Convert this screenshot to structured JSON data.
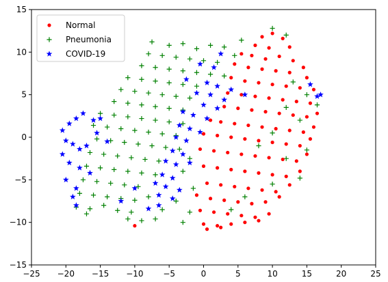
{
  "chart_data": {
    "type": "scatter",
    "title": "",
    "xlabel": "",
    "ylabel": "",
    "xlim": [
      -25,
      25
    ],
    "ylim": [
      -15,
      15
    ],
    "x_ticks": [
      -25,
      -20,
      -15,
      -10,
      -5,
      0,
      5,
      10,
      15,
      20,
      25
    ],
    "y_ticks": [
      -15,
      -10,
      -5,
      0,
      5,
      10,
      15
    ],
    "grid": false,
    "legend_position": "top-left",
    "series": [
      {
        "name": "Normal",
        "color": "#ff0000",
        "marker": "circle",
        "points": [
          [
            8.5,
            11.8
          ],
          [
            10.0,
            12.2
          ],
          [
            11.5,
            11.6
          ],
          [
            7.5,
            10.8
          ],
          [
            9.5,
            10.5
          ],
          [
            12.5,
            10.6
          ],
          [
            5.5,
            9.8
          ],
          [
            7.0,
            9.6
          ],
          [
            9.0,
            9.2
          ],
          [
            11.0,
            9.5
          ],
          [
            13.0,
            9.0
          ],
          [
            14.5,
            8.2
          ],
          [
            4.5,
            8.6
          ],
          [
            6.5,
            8.2
          ],
          [
            8.5,
            8.0
          ],
          [
            10.5,
            7.8
          ],
          [
            12.5,
            7.6
          ],
          [
            15.0,
            7.0
          ],
          [
            4.0,
            7.0
          ],
          [
            6.0,
            6.6
          ],
          [
            8.0,
            6.4
          ],
          [
            10.0,
            6.2
          ],
          [
            12.0,
            6.0
          ],
          [
            14.0,
            5.8
          ],
          [
            16.0,
            5.6
          ],
          [
            3.5,
            5.2
          ],
          [
            5.5,
            5.0
          ],
          [
            7.5,
            4.8
          ],
          [
            9.5,
            4.6
          ],
          [
            11.5,
            4.4
          ],
          [
            13.5,
            4.2
          ],
          [
            15.5,
            4.0
          ],
          [
            3.0,
            3.6
          ],
          [
            5.0,
            3.4
          ],
          [
            7.0,
            3.2
          ],
          [
            9.0,
            3.0
          ],
          [
            11.0,
            2.8
          ],
          [
            13.0,
            2.6
          ],
          [
            15.0,
            2.4
          ],
          [
            16.5,
            2.8
          ],
          [
            1.0,
            2.0
          ],
          [
            2.5,
            1.8
          ],
          [
            4.5,
            1.6
          ],
          [
            6.5,
            1.4
          ],
          [
            8.5,
            1.2
          ],
          [
            10.5,
            1.0
          ],
          [
            12.5,
            0.8
          ],
          [
            14.5,
            0.6
          ],
          [
            16.0,
            1.2
          ],
          [
            0.0,
            0.4
          ],
          [
            2.0,
            0.2
          ],
          [
            4.0,
            0.0
          ],
          [
            6.0,
            -0.2
          ],
          [
            8.0,
            -0.4
          ],
          [
            10.0,
            -0.6
          ],
          [
            12.0,
            -0.8
          ],
          [
            14.0,
            -1.0
          ],
          [
            15.5,
            -0.2
          ],
          [
            -0.5,
            -1.4
          ],
          [
            1.5,
            -1.6
          ],
          [
            3.5,
            -1.8
          ],
          [
            5.5,
            -2.0
          ],
          [
            7.5,
            -2.2
          ],
          [
            9.5,
            -2.4
          ],
          [
            11.5,
            -2.6
          ],
          [
            13.5,
            -2.8
          ],
          [
            15.0,
            -2.0
          ],
          [
            0.0,
            -3.4
          ],
          [
            2.0,
            -3.6
          ],
          [
            4.0,
            -3.8
          ],
          [
            6.0,
            -4.0
          ],
          [
            8.0,
            -4.2
          ],
          [
            10.0,
            -4.4
          ],
          [
            12.0,
            -4.6
          ],
          [
            14.0,
            -4.0
          ],
          [
            0.5,
            -5.4
          ],
          [
            2.5,
            -5.6
          ],
          [
            4.5,
            -5.8
          ],
          [
            6.5,
            -6.0
          ],
          [
            8.5,
            -6.2
          ],
          [
            10.5,
            -6.4
          ],
          [
            12.5,
            -5.6
          ],
          [
            -1.0,
            -6.8
          ],
          [
            1.0,
            -7.2
          ],
          [
            3.0,
            -7.4
          ],
          [
            5.0,
            -7.6
          ],
          [
            7.0,
            -7.8
          ],
          [
            9.0,
            -7.6
          ],
          [
            11.0,
            -7.0
          ],
          [
            -0.5,
            -8.6
          ],
          [
            1.5,
            -8.8
          ],
          [
            3.5,
            -9.0
          ],
          [
            5.5,
            -9.2
          ],
          [
            7.5,
            -9.4
          ],
          [
            9.5,
            -9.0
          ],
          [
            0.0,
            -10.2
          ],
          [
            2.0,
            -10.4
          ],
          [
            4.0,
            -10.2
          ],
          [
            6.0,
            -10.0
          ],
          [
            8.0,
            -9.8
          ],
          [
            0.5,
            -10.8
          ],
          [
            2.5,
            -10.6
          ],
          [
            -10.0,
            -10.4
          ]
        ]
      },
      {
        "name": "Pneumonia",
        "color": "#008000",
        "marker": "plus",
        "points": [
          [
            -7.5,
            11.2
          ],
          [
            -5.0,
            10.8
          ],
          [
            -3.0,
            11.0
          ],
          [
            -1.0,
            10.4
          ],
          [
            1.0,
            10.8
          ],
          [
            3.0,
            10.6
          ],
          [
            5.5,
            11.4
          ],
          [
            10.0,
            12.8
          ],
          [
            12.0,
            12.0
          ],
          [
            -8.0,
            9.8
          ],
          [
            -6.0,
            9.6
          ],
          [
            -4.0,
            9.4
          ],
          [
            -2.0,
            9.2
          ],
          [
            0.0,
            9.0
          ],
          [
            2.0,
            8.8
          ],
          [
            4.5,
            9.6
          ],
          [
            -9.0,
            8.4
          ],
          [
            -7.0,
            8.2
          ],
          [
            -5.0,
            8.0
          ],
          [
            -3.0,
            7.8
          ],
          [
            -1.0,
            7.6
          ],
          [
            1.0,
            7.4
          ],
          [
            3.0,
            7.2
          ],
          [
            -11.0,
            7.0
          ],
          [
            -9.0,
            6.8
          ],
          [
            -7.0,
            6.6
          ],
          [
            -5.0,
            6.4
          ],
          [
            -3.0,
            6.2
          ],
          [
            -1.0,
            6.0
          ],
          [
            13.0,
            6.5
          ],
          [
            -12.0,
            5.6
          ],
          [
            -10.0,
            5.4
          ],
          [
            -8.0,
            5.2
          ],
          [
            -6.0,
            5.0
          ],
          [
            -4.0,
            4.8
          ],
          [
            -2.0,
            4.6
          ],
          [
            15.0,
            5.0
          ],
          [
            -13.0,
            4.2
          ],
          [
            -11.0,
            4.0
          ],
          [
            -9.0,
            3.8
          ],
          [
            -7.0,
            3.6
          ],
          [
            -5.0,
            3.4
          ],
          [
            -3.0,
            3.2
          ],
          [
            12.0,
            3.5
          ],
          [
            16.5,
            3.8
          ],
          [
            -15.0,
            2.8
          ],
          [
            -13.0,
            2.6
          ],
          [
            -11.0,
            2.4
          ],
          [
            -9.0,
            2.2
          ],
          [
            -7.0,
            2.0
          ],
          [
            -5.0,
            1.8
          ],
          [
            -3.0,
            1.6
          ],
          [
            14.0,
            2.0
          ],
          [
            -16.0,
            1.4
          ],
          [
            -14.0,
            1.2
          ],
          [
            -12.0,
            1.0
          ],
          [
            -10.0,
            0.8
          ],
          [
            -8.0,
            0.6
          ],
          [
            -6.0,
            0.4
          ],
          [
            -4.0,
            0.2
          ],
          [
            10.0,
            0.5
          ],
          [
            -15.5,
            -0.2
          ],
          [
            -13.5,
            -0.4
          ],
          [
            -11.5,
            -0.6
          ],
          [
            -9.5,
            -0.8
          ],
          [
            -7.5,
            -1.0
          ],
          [
            -5.5,
            -1.2
          ],
          [
            -3.5,
            -1.4
          ],
          [
            8.0,
            -1.0
          ],
          [
            15.0,
            -1.5
          ],
          [
            -16.5,
            -1.8
          ],
          [
            -14.5,
            -2.0
          ],
          [
            -12.5,
            -2.2
          ],
          [
            -10.5,
            -2.4
          ],
          [
            -8.5,
            -2.6
          ],
          [
            -6.5,
            -2.8
          ],
          [
            -2.0,
            -2.5
          ],
          [
            12.0,
            -2.5
          ],
          [
            -17.0,
            -3.4
          ],
          [
            -15.0,
            -3.6
          ],
          [
            -13.0,
            -3.8
          ],
          [
            -11.0,
            -4.0
          ],
          [
            -9.0,
            -4.2
          ],
          [
            -7.0,
            -4.4
          ],
          [
            -3.0,
            -4.0
          ],
          [
            14.0,
            -4.8
          ],
          [
            -17.5,
            -5.0
          ],
          [
            -15.5,
            -5.2
          ],
          [
            -13.5,
            -5.4
          ],
          [
            -11.5,
            -5.6
          ],
          [
            -9.5,
            -5.8
          ],
          [
            -1.5,
            -6.0
          ],
          [
            10.0,
            -5.5
          ],
          [
            -18.0,
            -6.6
          ],
          [
            -16.0,
            -6.8
          ],
          [
            -14.0,
            -7.0
          ],
          [
            -12.0,
            -7.2
          ],
          [
            -10.0,
            -7.4
          ],
          [
            -8.0,
            -7.0
          ],
          [
            -4.0,
            -7.5
          ],
          [
            6.0,
            -7.0
          ],
          [
            -18.5,
            -8.2
          ],
          [
            -16.5,
            -8.4
          ],
          [
            -14.5,
            -8.0
          ],
          [
            -12.5,
            -8.6
          ],
          [
            -10.5,
            -8.8
          ],
          [
            -6.0,
            -8.5
          ],
          [
            -2.0,
            -8.8
          ],
          [
            4.0,
            -8.5
          ],
          [
            -17.0,
            -9.0
          ],
          [
            -11.0,
            -9.6
          ],
          [
            -9.0,
            -9.8
          ],
          [
            -7.0,
            -9.6
          ],
          [
            -3.0,
            -10.0
          ]
        ]
      },
      {
        "name": "COVID-19",
        "color": "#0000ff",
        "marker": "star",
        "points": [
          [
            -0.5,
            8.6
          ],
          [
            1.5,
            8.2
          ],
          [
            2.5,
            9.8
          ],
          [
            -2.5,
            6.8
          ],
          [
            0.5,
            6.4
          ],
          [
            2.0,
            6.0
          ],
          [
            4.0,
            5.6
          ],
          [
            -1.0,
            5.2
          ],
          [
            1.0,
            5.0
          ],
          [
            3.0,
            4.4
          ],
          [
            0.0,
            3.8
          ],
          [
            2.0,
            3.4
          ],
          [
            -3.0,
            3.0
          ],
          [
            -1.5,
            2.6
          ],
          [
            0.5,
            2.2
          ],
          [
            -3.5,
            1.4
          ],
          [
            -2.0,
            1.0
          ],
          [
            -0.5,
            0.6
          ],
          [
            -4.0,
            0.0
          ],
          [
            -2.5,
            -0.4
          ],
          [
            -4.5,
            -1.6
          ],
          [
            -3.0,
            -2.0
          ],
          [
            -5.5,
            -2.8
          ],
          [
            -4.0,
            -3.2
          ],
          [
            -2.0,
            -3.0
          ],
          [
            -6.0,
            -4.4
          ],
          [
            -4.5,
            -4.8
          ],
          [
            -7.0,
            -5.4
          ],
          [
            -5.5,
            -5.8
          ],
          [
            -3.5,
            -6.2
          ],
          [
            -6.5,
            -6.8
          ],
          [
            -4.5,
            -7.2
          ],
          [
            -6.5,
            -8.0
          ],
          [
            -20.5,
            0.8
          ],
          [
            -19.5,
            1.6
          ],
          [
            -18.5,
            2.2
          ],
          [
            -17.5,
            2.8
          ],
          [
            -20.0,
            -0.4
          ],
          [
            -19.0,
            -0.8
          ],
          [
            -18.0,
            -1.4
          ],
          [
            -20.5,
            -2.0
          ],
          [
            -19.5,
            -3.0
          ],
          [
            -18.0,
            -3.6
          ],
          [
            -17.0,
            -1.0
          ],
          [
            -16.0,
            2.0
          ],
          [
            -15.5,
            0.5
          ],
          [
            -16.5,
            -4.2
          ],
          [
            -20.0,
            -5.0
          ],
          [
            -18.5,
            -6.0
          ],
          [
            -19.0,
            -7.0
          ],
          [
            -18.5,
            -8.0
          ],
          [
            -15.0,
            2.2
          ],
          [
            -14.0,
            -0.5
          ],
          [
            -10.0,
            -6.0
          ],
          [
            -12.0,
            -7.5
          ],
          [
            -8.0,
            -8.4
          ],
          [
            6.0,
            5.0
          ],
          [
            15.5,
            6.2
          ],
          [
            16.5,
            4.8
          ],
          [
            17.0,
            5.0
          ]
        ]
      }
    ]
  }
}
